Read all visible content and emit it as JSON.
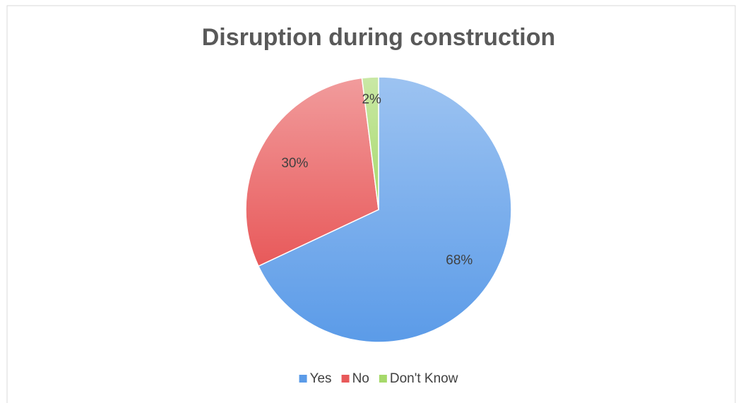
{
  "chart_data": {
    "type": "pie",
    "title": "Disruption during construction",
    "categories": [
      "Yes",
      "No",
      "Don't Know"
    ],
    "values": [
      68,
      30,
      2
    ],
    "value_labels": [
      "68%",
      "30%",
      "2%"
    ],
    "colors": [
      "#5b9be8",
      "#e8595a",
      "#a6d96a"
    ],
    "legend": "bottom"
  }
}
